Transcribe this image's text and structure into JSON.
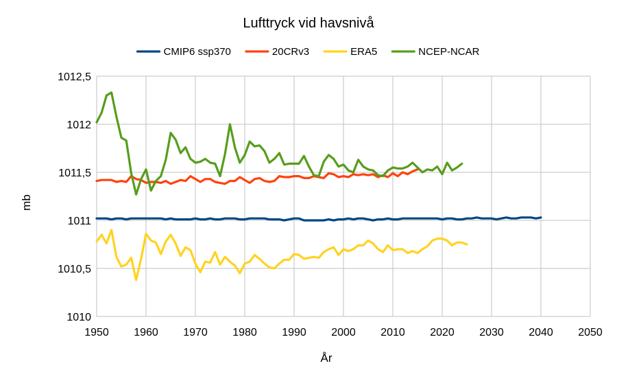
{
  "chart_data": {
    "type": "line",
    "title": "Lufttryck vid havsnivå",
    "xlabel": "År",
    "ylabel": "mb",
    "xlim": [
      1950,
      2050
    ],
    "ylim": [
      1010,
      1012.5
    ],
    "xticks": [
      1950,
      1960,
      1970,
      1980,
      1990,
      2000,
      2010,
      2020,
      2030,
      2040,
      2050
    ],
    "yticks": [
      1010,
      1010.5,
      1011,
      1011.5,
      1012,
      1012.5
    ],
    "ytick_labels": [
      "1010",
      "1010,5",
      "1011",
      "1011,5",
      "1012",
      "1012,5"
    ],
    "grid": true,
    "legend_position": "top",
    "series": [
      {
        "name": "CMIP6 ssp370",
        "color": "#004586",
        "x_start": 1950,
        "values": [
          1011.02,
          1011.02,
          1011.02,
          1011.01,
          1011.02,
          1011.02,
          1011.01,
          1011.02,
          1011.02,
          1011.02,
          1011.02,
          1011.02,
          1011.02,
          1011.02,
          1011.01,
          1011.02,
          1011.01,
          1011.01,
          1011.01,
          1011.01,
          1011.02,
          1011.01,
          1011.01,
          1011.02,
          1011.01,
          1011.01,
          1011.02,
          1011.02,
          1011.02,
          1011.01,
          1011.01,
          1011.02,
          1011.02,
          1011.02,
          1011.02,
          1011.01,
          1011.01,
          1011.01,
          1011.0,
          1011.01,
          1011.02,
          1011.02,
          1011.0,
          1011.0,
          1011.0,
          1011.0,
          1011.0,
          1011.01,
          1011.0,
          1011.01,
          1011.01,
          1011.02,
          1011.01,
          1011.02,
          1011.02,
          1011.01,
          1011.0,
          1011.01,
          1011.01,
          1011.02,
          1011.01,
          1011.01,
          1011.02,
          1011.02,
          1011.02,
          1011.02,
          1011.02,
          1011.02,
          1011.02,
          1011.02,
          1011.01,
          1011.02,
          1011.02,
          1011.01,
          1011.01,
          1011.02,
          1011.02,
          1011.03,
          1011.02,
          1011.02,
          1011.02,
          1011.01,
          1011.02,
          1011.03,
          1011.02,
          1011.02,
          1011.03,
          1011.03,
          1011.03,
          1011.02,
          1011.03
        ]
      },
      {
        "name": "20CRv3",
        "color": "#ff420e",
        "x_start": 1950,
        "values": [
          1011.41,
          1011.42,
          1011.42,
          1011.42,
          1011.4,
          1011.41,
          1011.4,
          1011.46,
          1011.43,
          1011.42,
          1011.39,
          1011.4,
          1011.4,
          1011.39,
          1011.41,
          1011.38,
          1011.4,
          1011.42,
          1011.41,
          1011.46,
          1011.43,
          1011.4,
          1011.43,
          1011.43,
          1011.4,
          1011.39,
          1011.38,
          1011.41,
          1011.41,
          1011.45,
          1011.42,
          1011.39,
          1011.43,
          1011.44,
          1011.41,
          1011.4,
          1011.41,
          1011.46,
          1011.45,
          1011.45,
          1011.46,
          1011.46,
          1011.44,
          1011.44,
          1011.46,
          1011.45,
          1011.44,
          1011.49,
          1011.48,
          1011.45,
          1011.46,
          1011.45,
          1011.48,
          1011.47,
          1011.48,
          1011.47,
          1011.48,
          1011.45,
          1011.47,
          1011.45,
          1011.49,
          1011.46,
          1011.5,
          1011.48,
          1011.51,
          1011.53
        ]
      },
      {
        "name": "ERA5",
        "color": "#ffd320",
        "x_start": 1950,
        "values": [
          1010.78,
          1010.85,
          1010.76,
          1010.9,
          1010.62,
          1010.52,
          1010.54,
          1010.61,
          1010.38,
          1010.6,
          1010.86,
          1010.79,
          1010.77,
          1010.65,
          1010.78,
          1010.85,
          1010.76,
          1010.63,
          1010.72,
          1010.69,
          1010.55,
          1010.46,
          1010.57,
          1010.56,
          1010.67,
          1010.54,
          1010.62,
          1010.57,
          1010.53,
          1010.45,
          1010.55,
          1010.57,
          1010.64,
          1010.6,
          1010.55,
          1010.51,
          1010.5,
          1010.55,
          1010.59,
          1010.59,
          1010.65,
          1010.64,
          1010.6,
          1010.61,
          1010.62,
          1010.61,
          1010.67,
          1010.7,
          1010.72,
          1010.64,
          1010.7,
          1010.68,
          1010.7,
          1010.74,
          1010.74,
          1010.79,
          1010.76,
          1010.7,
          1010.67,
          1010.74,
          1010.69,
          1010.7,
          1010.7,
          1010.66,
          1010.68,
          1010.66,
          1010.7,
          1010.73,
          1010.79,
          1010.81,
          1010.81,
          1010.79,
          1010.74,
          1010.77,
          1010.77,
          1010.75
        ]
      },
      {
        "name": "NCEP-NCAR",
        "color": "#579d1c",
        "x_start": 1948,
        "values": [
          null,
          null,
          1012.02,
          1012.12,
          1012.3,
          1012.33,
          1012.08,
          1011.86,
          1011.83,
          1011.49,
          1011.27,
          1011.43,
          1011.53,
          1011.31,
          1011.41,
          1011.46,
          1011.63,
          1011.91,
          1011.84,
          1011.7,
          1011.76,
          1011.64,
          1011.6,
          1011.61,
          1011.64,
          1011.6,
          1011.59,
          1011.46,
          1011.69,
          1012.0,
          1011.76,
          1011.6,
          1011.68,
          1011.82,
          1011.77,
          1011.78,
          1011.72,
          1011.6,
          1011.64,
          1011.7,
          1011.58,
          1011.59,
          1011.59,
          1011.59,
          1011.67,
          1011.56,
          1011.47,
          1011.46,
          1011.61,
          1011.68,
          1011.64,
          1011.56,
          1011.58,
          1011.52,
          1011.5,
          1011.63,
          1011.56,
          1011.53,
          1011.52,
          1011.47,
          1011.46,
          1011.52,
          1011.55,
          1011.54,
          1011.54,
          1011.56,
          1011.6,
          1011.55,
          1011.5,
          1011.53,
          1011.52,
          1011.56,
          1011.48,
          1011.6,
          1011.52,
          1011.55,
          1011.59
        ]
      }
    ]
  }
}
